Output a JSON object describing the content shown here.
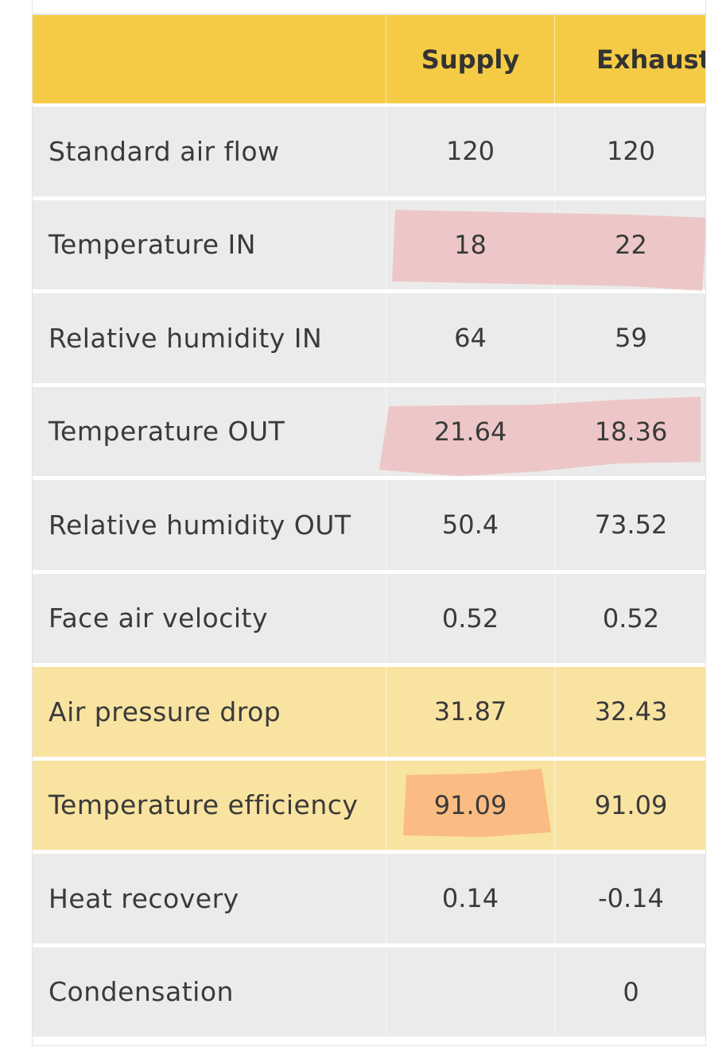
{
  "table": {
    "headers": {
      "label": "",
      "supply": "Supply",
      "exhaust": "Exhaust"
    },
    "rows": [
      {
        "label": "Standard air flow",
        "supply": "120",
        "exhaust": "120"
      },
      {
        "label": "Temperature IN",
        "supply": "18",
        "exhaust": "22"
      },
      {
        "label": "Relative humidity IN",
        "supply": "64",
        "exhaust": "59"
      },
      {
        "label": "Temperature OUT",
        "supply": "21.64",
        "exhaust": "18.36"
      },
      {
        "label": "Relative humidity OUT",
        "supply": "50.4",
        "exhaust": "73.52"
      },
      {
        "label": "Face air velocity",
        "supply": "0.52",
        "exhaust": "0.52"
      },
      {
        "label": "Air pressure drop",
        "supply": "31.87",
        "exhaust": "32.43"
      },
      {
        "label": "Temperature efficiency",
        "supply": "91.09",
        "exhaust": "91.09"
      },
      {
        "label": "Heat recovery",
        "supply": "0.14",
        "exhaust": "-0.14"
      },
      {
        "label": "Condensation",
        "supply": "",
        "exhaust": "0"
      }
    ]
  },
  "colors": {
    "header": "#f5cb45",
    "row": "#ebebeb",
    "row_highlight": "#f9e3a0",
    "marker_pink": "#eec4c4",
    "marker_orange": "#f8c08a"
  }
}
